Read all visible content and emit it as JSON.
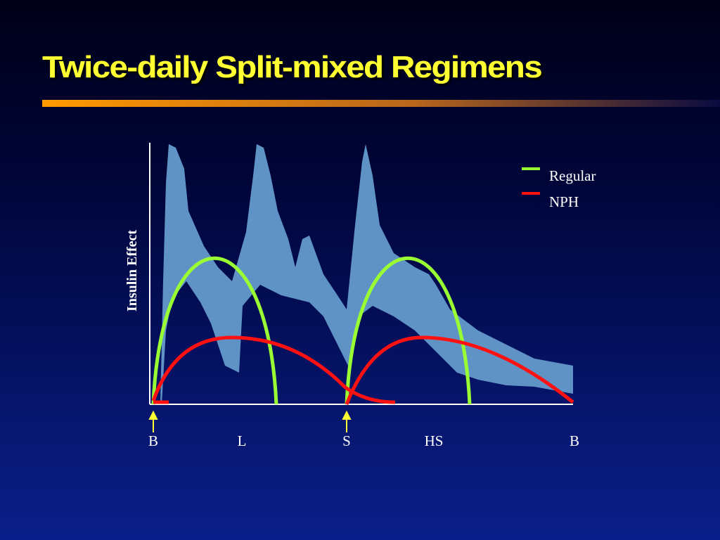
{
  "title": "Twice-daily Split-mixed Regimens",
  "y_axis_label": "Insulin Effect",
  "legend": [
    {
      "label": "Regular",
      "color": "#99ff33"
    },
    {
      "label": "NPH",
      "color": "#ff1111"
    }
  ],
  "x_labels": [
    "B",
    "L",
    "S",
    "HS",
    "B"
  ]
}
